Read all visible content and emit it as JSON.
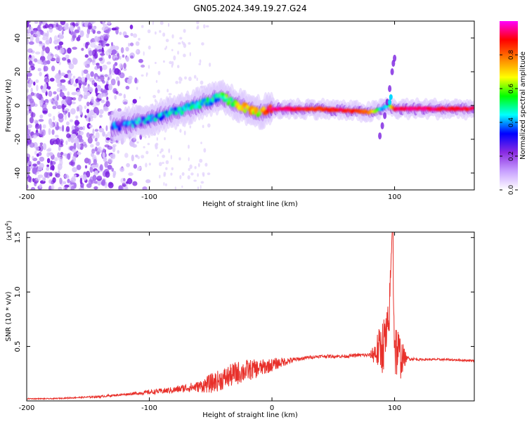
{
  "title": "GN05.2024.349.19.27.G24",
  "chart_data": [
    {
      "type": "heatmap",
      "xlabel": "Height of straight line (km)",
      "ylabel": "Frequency (Hz)",
      "xlim": [
        -200,
        165
      ],
      "ylim": [
        -50,
        50
      ],
      "xticks": [
        -200,
        -100,
        0,
        100
      ],
      "xtick_labels": [
        "-200",
        "-100",
        "",
        "100"
      ],
      "yticks": [
        -40,
        -20,
        0,
        20,
        40
      ],
      "ytick_labels": [
        "-40",
        "-20",
        "0",
        "20",
        "40"
      ],
      "colorbar": {
        "label": "Normalized spectral amplitude",
        "range": [
          0,
          1
        ],
        "ticks": [
          0.0,
          0.2,
          0.4,
          0.6,
          0.8
        ],
        "tick_labels": [
          "0.0",
          "0.2",
          "0.4",
          "0.6",
          "0.8"
        ],
        "colormap": [
          "#ffffff",
          "#c8a0ff",
          "#8a2be2",
          "#0000ff",
          "#00ffff",
          "#00ff00",
          "#ffff00",
          "#ff8000",
          "#ff0000",
          "#ff00ff"
        ]
      },
      "ridge": {
        "x": [
          -130,
          -110,
          -90,
          -70,
          -50,
          -40,
          -30,
          -20,
          -10,
          0,
          20,
          40,
          60,
          80,
          90,
          95,
          100,
          120,
          140,
          165
        ],
        "freq": [
          -13,
          -10,
          -6,
          -2,
          3,
          5,
          1,
          -2,
          -4,
          -2,
          -2,
          -2,
          -3,
          -4,
          -2,
          0,
          -2,
          -2,
          -2,
          -2
        ],
        "amplitude": [
          0.3,
          0.35,
          0.4,
          0.45,
          0.45,
          0.5,
          0.6,
          0.7,
          0.6,
          0.95,
          0.9,
          0.85,
          0.9,
          0.8,
          0.4,
          0.45,
          0.9,
          0.95,
          0.9,
          0.9
        ]
      },
      "grid": false
    },
    {
      "type": "line",
      "xlabel": "Height of straight line (km)",
      "ylabel": "SNR (10 * v/v)",
      "y_multiplier_label": "(x10",
      "y_multiplier_exp": "4",
      "xlim": [
        -200,
        165
      ],
      "ylim": [
        0,
        1.55
      ],
      "xticks": [
        -200,
        -100,
        0,
        100
      ],
      "xtick_labels": [
        "-200",
        "-100",
        "0",
        "100"
      ],
      "yticks": [
        0.5,
        1.0,
        1.5
      ],
      "ytick_labels": [
        "0.5",
        "1.0",
        "1.5"
      ],
      "series": [
        {
          "color": "#e8302a",
          "x": [
            -200,
            -180,
            -160,
            -140,
            -120,
            -100,
            -80,
            -70,
            -60,
            -50,
            -40,
            -30,
            -20,
            -10,
            0,
            10,
            20,
            30,
            40,
            50,
            60,
            70,
            80,
            85,
            90,
            95,
            98,
            100,
            105,
            110,
            120,
            140,
            165
          ],
          "y": [
            0.02,
            0.02,
            0.03,
            0.04,
            0.06,
            0.08,
            0.1,
            0.12,
            0.13,
            0.16,
            0.2,
            0.25,
            0.28,
            0.3,
            0.33,
            0.36,
            0.38,
            0.4,
            0.41,
            0.41,
            0.41,
            0.42,
            0.42,
            0.45,
            0.5,
            0.6,
            1.55,
            0.5,
            0.4,
            0.39,
            0.38,
            0.38,
            0.37
          ],
          "noise": [
            0.005,
            0.005,
            0.006,
            0.01,
            0.01,
            0.02,
            0.03,
            0.04,
            0.05,
            0.09,
            0.1,
            0.11,
            0.1,
            0.08,
            0.06,
            0.04,
            0.02,
            0.015,
            0.015,
            0.015,
            0.015,
            0.015,
            0.02,
            0.15,
            0.25,
            0.3,
            0.0,
            0.3,
            0.2,
            0.02,
            0.01,
            0.01,
            0.01
          ]
        }
      ],
      "grid": false
    }
  ]
}
